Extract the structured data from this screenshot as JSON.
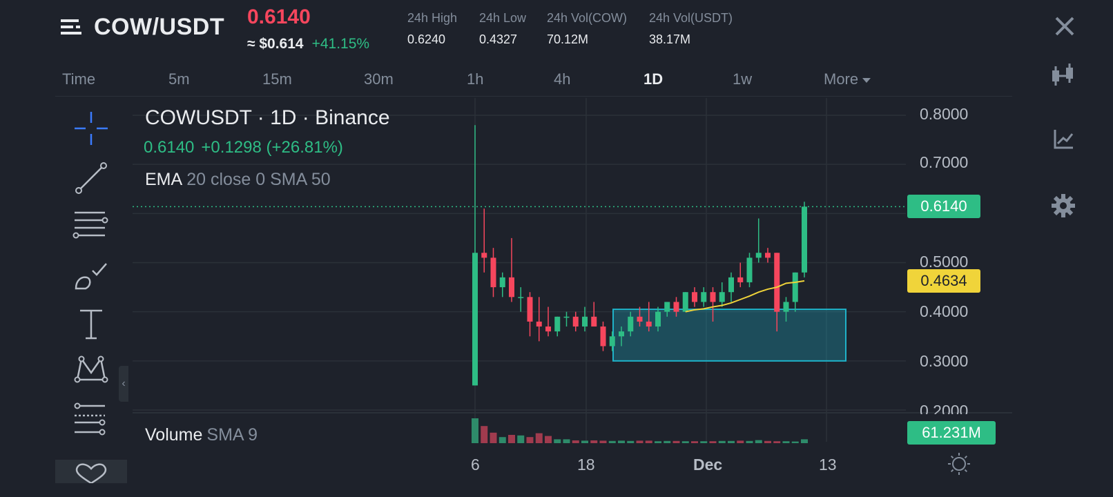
{
  "header": {
    "pair": "COW/USDT",
    "last_price": "0.6140",
    "usd_price": "≈ $0.614",
    "change_pct": "+41.15%",
    "stats": [
      {
        "label": "24h High",
        "value": "0.6240"
      },
      {
        "label": "24h Low",
        "value": "0.4327"
      },
      {
        "label": "24h Vol(COW)",
        "value": "70.12M"
      },
      {
        "label": "24h Vol(USDT)",
        "value": "38.17M"
      }
    ]
  },
  "timeframes": [
    "Time",
    "5m",
    "15m",
    "30m",
    "1h",
    "4h",
    "1D",
    "1w",
    "More"
  ],
  "active_timeframe": "1D",
  "toolbar_icons": [
    "crosshair-icon",
    "trend-line-icon",
    "fib-lines-icon",
    "brush-icon",
    "text-tool-icon",
    "pattern-icon",
    "indicator-settings-icon",
    "heart-icon"
  ],
  "side_icons": [
    "close-icon",
    "candlestick-icon",
    "chart-type-icon",
    "gear-icon"
  ],
  "legend": {
    "title": "COWUSDT · 1D · Binance",
    "close": "0.6140",
    "change": "+0.1298 (+26.81%)",
    "indicator_name": "EMA",
    "indicator_params": "20 close 0 SMA 50",
    "volume_name": "Volume",
    "volume_params": "SMA 9"
  },
  "price_axis": [
    "0.8000",
    "0.7000",
    "0.6000",
    "0.5000",
    "0.4000",
    "0.3000",
    "0.2000"
  ],
  "price_tags": {
    "last": "0.6140",
    "ema": "0.4634",
    "volume": "61.231M"
  },
  "date_axis": [
    "6",
    "18",
    "Dec",
    "13"
  ],
  "colors": {
    "background": "#1e222b",
    "up": "#2ebd85",
    "down": "#f6465d",
    "ema": "#f0d43a",
    "box": "#1fb3c9",
    "accent": "#3b7bff"
  },
  "chart_data": {
    "type": "candlestick",
    "title": "COWUSDT · 1D · Binance",
    "ylim": [
      0.2,
      0.8
    ],
    "series": [
      {
        "name": "COWUSDT",
        "candles": [
          {
            "o": 0.25,
            "h": 0.78,
            "l": 0.25,
            "c": 0.52
          },
          {
            "o": 0.52,
            "h": 0.61,
            "l": 0.48,
            "c": 0.51
          },
          {
            "o": 0.51,
            "h": 0.53,
            "l": 0.43,
            "c": 0.45
          },
          {
            "o": 0.45,
            "h": 0.48,
            "l": 0.43,
            "c": 0.47
          },
          {
            "o": 0.47,
            "h": 0.55,
            "l": 0.42,
            "c": 0.43
          },
          {
            "o": 0.43,
            "h": 0.45,
            "l": 0.4,
            "c": 0.43
          },
          {
            "o": 0.43,
            "h": 0.44,
            "l": 0.35,
            "c": 0.38
          },
          {
            "o": 0.38,
            "h": 0.43,
            "l": 0.34,
            "c": 0.37
          },
          {
            "o": 0.37,
            "h": 0.41,
            "l": 0.35,
            "c": 0.36
          },
          {
            "o": 0.36,
            "h": 0.39,
            "l": 0.35,
            "c": 0.39
          },
          {
            "o": 0.39,
            "h": 0.4,
            "l": 0.37,
            "c": 0.39
          },
          {
            "o": 0.39,
            "h": 0.4,
            "l": 0.36,
            "c": 0.37
          },
          {
            "o": 0.37,
            "h": 0.41,
            "l": 0.36,
            "c": 0.39
          },
          {
            "o": 0.39,
            "h": 0.42,
            "l": 0.37,
            "c": 0.37
          },
          {
            "o": 0.37,
            "h": 0.38,
            "l": 0.32,
            "c": 0.33
          },
          {
            "o": 0.33,
            "h": 0.36,
            "l": 0.32,
            "c": 0.35
          },
          {
            "o": 0.35,
            "h": 0.37,
            "l": 0.33,
            "c": 0.36
          },
          {
            "o": 0.36,
            "h": 0.4,
            "l": 0.35,
            "c": 0.39
          },
          {
            "o": 0.39,
            "h": 0.41,
            "l": 0.37,
            "c": 0.38
          },
          {
            "o": 0.38,
            "h": 0.42,
            "l": 0.36,
            "c": 0.37
          },
          {
            "o": 0.37,
            "h": 0.41,
            "l": 0.36,
            "c": 0.4
          },
          {
            "o": 0.4,
            "h": 0.42,
            "l": 0.39,
            "c": 0.42
          },
          {
            "o": 0.42,
            "h": 0.43,
            "l": 0.39,
            "c": 0.4
          },
          {
            "o": 0.4,
            "h": 0.44,
            "l": 0.4,
            "c": 0.44
          },
          {
            "o": 0.44,
            "h": 0.45,
            "l": 0.41,
            "c": 0.42
          },
          {
            "o": 0.42,
            "h": 0.45,
            "l": 0.41,
            "c": 0.44
          },
          {
            "o": 0.44,
            "h": 0.45,
            "l": 0.38,
            "c": 0.42
          },
          {
            "o": 0.42,
            "h": 0.46,
            "l": 0.41,
            "c": 0.44
          },
          {
            "o": 0.44,
            "h": 0.48,
            "l": 0.42,
            "c": 0.47
          },
          {
            "o": 0.47,
            "h": 0.5,
            "l": 0.45,
            "c": 0.46
          },
          {
            "o": 0.46,
            "h": 0.52,
            "l": 0.45,
            "c": 0.51
          },
          {
            "o": 0.51,
            "h": 0.59,
            "l": 0.5,
            "c": 0.52
          },
          {
            "o": 0.52,
            "h": 0.53,
            "l": 0.5,
            "c": 0.51
          },
          {
            "o": 0.52,
            "h": 0.52,
            "l": 0.36,
            "c": 0.4
          },
          {
            "o": 0.4,
            "h": 0.43,
            "l": 0.38,
            "c": 0.42
          },
          {
            "o": 0.42,
            "h": 0.48,
            "l": 0.4,
            "c": 0.48
          },
          {
            "o": 0.48,
            "h": 0.624,
            "l": 0.47,
            "c": 0.614
          }
        ]
      },
      {
        "name": "EMA",
        "values": [
          0.4,
          0.404,
          0.406,
          0.41,
          0.413,
          0.418,
          0.425,
          0.432,
          0.44,
          0.446,
          0.45,
          0.458,
          0.46,
          0.463
        ]
      }
    ],
    "volume": [
      0.9,
      0.62,
      0.38,
      0.22,
      0.3,
      0.28,
      0.22,
      0.36,
      0.26,
      0.14,
      0.14,
      0.1,
      0.09,
      0.1,
      0.09,
      0.08,
      0.09,
      0.08,
      0.09,
      0.09,
      0.07,
      0.08,
      0.08,
      0.07,
      0.07,
      0.07,
      0.07,
      0.08,
      0.08,
      0.09,
      0.08,
      0.11,
      0.08,
      0.07,
      0.07,
      0.06,
      0.14
    ],
    "volume_last": "61.231M"
  }
}
